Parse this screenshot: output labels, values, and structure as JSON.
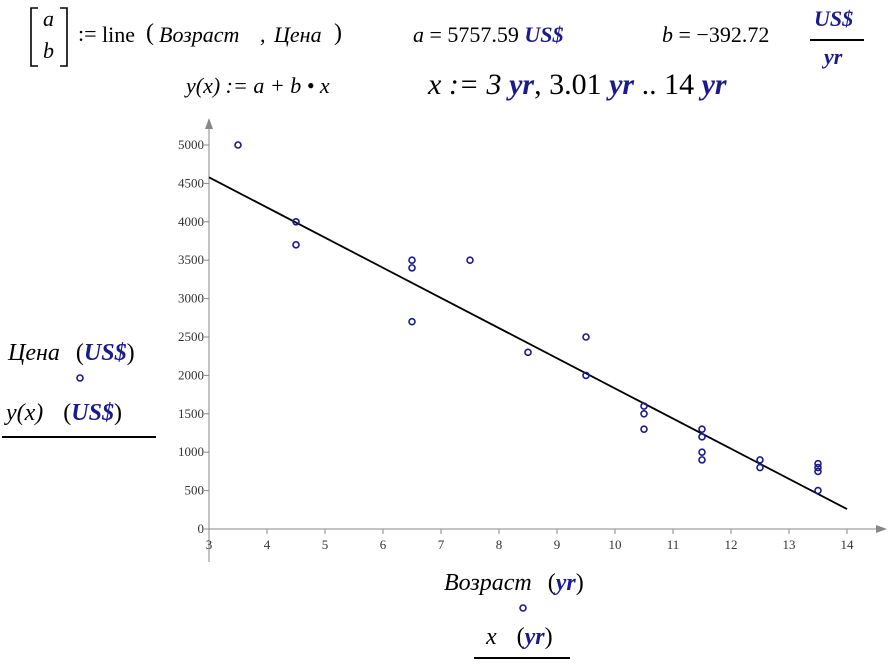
{
  "formula": {
    "vector_a": "a",
    "vector_b": "b",
    "assign_op": ":=",
    "func_name": "line",
    "arg1": "Возраст",
    "arg2": "Цена",
    "a_label": "a",
    "a_value": "5757.59",
    "a_unit": "US$",
    "b_label": "b",
    "b_value": "−392.72",
    "b_unit_num": "US$",
    "b_unit_den": "yr",
    "y_def": "y(x) := a + b • x",
    "x_range_prefix": "x := 3",
    "x_range_unit1": "yr",
    "x_range_mid": ", 3.01",
    "x_range_unit2": "yr",
    "x_range_dots": "..",
    "x_range_end": "14",
    "x_range_unit3": "yr",
    "eq_sign": "="
  },
  "y_axis_labels": {
    "trace1_name": "Цена",
    "trace1_unit": "US$",
    "trace2_name": "y(x)",
    "trace2_unit": "US$"
  },
  "x_axis_labels": {
    "trace1_name": "Возраст",
    "trace1_unit": "yr",
    "trace2_name": "x",
    "trace2_unit": "yr"
  },
  "chart_data": {
    "type": "scatter",
    "title": "",
    "xlabel": "Возраст (yr) / x (yr)",
    "ylabel": "Цена (US$) / y(x) (US$)",
    "xlim": [
      3,
      14.7
    ],
    "ylim": [
      0,
      5400
    ],
    "x_ticks": [
      3,
      4,
      5,
      6,
      7,
      8,
      9,
      10,
      11,
      12,
      13,
      14
    ],
    "y_ticks": [
      0,
      500,
      1000,
      1500,
      2000,
      2500,
      3000,
      3500,
      4000,
      4500,
      5000
    ],
    "series": [
      {
        "name": "Цена",
        "marker": "circle",
        "color": "#1a1a8c",
        "points": [
          [
            3.5,
            5000
          ],
          [
            4.5,
            4000
          ],
          [
            4.5,
            3700
          ],
          [
            6.5,
            3500
          ],
          [
            6.5,
            3400
          ],
          [
            6.5,
            2700
          ],
          [
            7.5,
            3500
          ],
          [
            8.5,
            2300
          ],
          [
            9.5,
            2500
          ],
          [
            9.5,
            2000
          ],
          [
            10.5,
            1600
          ],
          [
            10.5,
            1500
          ],
          [
            10.5,
            1300
          ],
          [
            11.5,
            1300
          ],
          [
            11.5,
            1200
          ],
          [
            11.5,
            1000
          ],
          [
            11.5,
            900
          ],
          [
            12.5,
            900
          ],
          [
            12.5,
            800
          ],
          [
            13.5,
            850
          ],
          [
            13.5,
            800
          ],
          [
            13.5,
            750
          ],
          [
            13.5,
            500
          ]
        ]
      },
      {
        "name": "y(x)",
        "line_color": "#000000",
        "intercept": 5757.59,
        "slope": -392.72,
        "x_start": 3,
        "x_end": 14
      }
    ]
  }
}
